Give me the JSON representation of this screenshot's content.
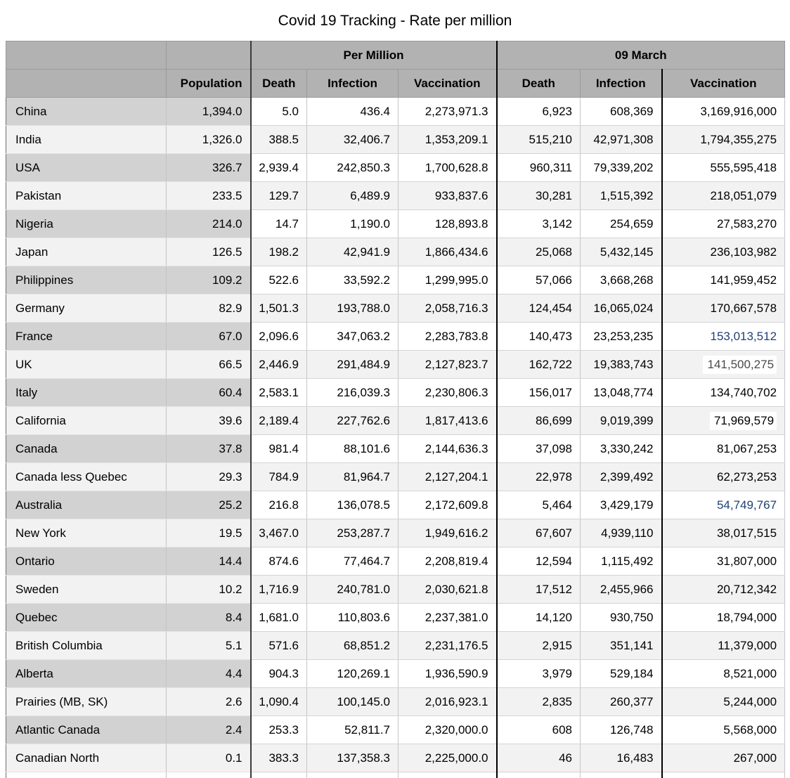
{
  "title": "Covid 19 Tracking - Rate per million",
  "colors": {
    "header_bg": "#b2b2b2",
    "label_column_bg": "#d2d2d2",
    "row_stripe_bg": "#f2f2f2",
    "accent_blue_text": "#1f4175",
    "highlight_cell_bg": "#ffffff",
    "muted_text": "#4a4a4a"
  },
  "table": {
    "group_headers": [
      "Per Million",
      "09 March"
    ],
    "column_headers": [
      "Population",
      "Death",
      "Infection",
      "Vaccination",
      "Death",
      "Infection",
      "Vaccination"
    ],
    "rows": [
      {
        "name": "China",
        "population": "1,394.0",
        "pm_death": "5.0",
        "pm_infection": "436.4",
        "pm_vaccination": "2,273,971.3",
        "m9_death": "6,923",
        "m9_infection": "608,369",
        "m9_vaccination": "3,169,916,000"
      },
      {
        "name": "India",
        "population": "1,326.0",
        "pm_death": "388.5",
        "pm_infection": "32,406.7",
        "pm_vaccination": "1,353,209.1",
        "m9_death": "515,210",
        "m9_infection": "42,971,308",
        "m9_vaccination": "1,794,355,275"
      },
      {
        "name": "USA",
        "population": "326.7",
        "pm_death": "2,939.4",
        "pm_infection": "242,850.3",
        "pm_vaccination": "1,700,628.8",
        "m9_death": "960,311",
        "m9_infection": "79,339,202",
        "m9_vaccination": "555,595,418"
      },
      {
        "name": "Pakistan",
        "population": "233.5",
        "pm_death": "129.7",
        "pm_infection": "6,489.9",
        "pm_vaccination": "933,837.6",
        "m9_death": "30,281",
        "m9_infection": "1,515,392",
        "m9_vaccination": "218,051,079"
      },
      {
        "name": "Nigeria",
        "population": "214.0",
        "pm_death": "14.7",
        "pm_infection": "1,190.0",
        "pm_vaccination": "128,893.8",
        "m9_death": "3,142",
        "m9_infection": "254,659",
        "m9_vaccination": "27,583,270"
      },
      {
        "name": "Japan",
        "population": "126.5",
        "pm_death": "198.2",
        "pm_infection": "42,941.9",
        "pm_vaccination": "1,866,434.6",
        "m9_death": "25,068",
        "m9_infection": "5,432,145",
        "m9_vaccination": "236,103,982"
      },
      {
        "name": "Philippines",
        "population": "109.2",
        "pm_death": "522.6",
        "pm_infection": "33,592.2",
        "pm_vaccination": "1,299,995.0",
        "m9_death": "57,066",
        "m9_infection": "3,668,268",
        "m9_vaccination": "141,959,452"
      },
      {
        "name": "Germany",
        "population": "82.9",
        "pm_death": "1,501.3",
        "pm_infection": "193,788.0",
        "pm_vaccination": "2,058,716.3",
        "m9_death": "124,454",
        "m9_infection": "16,065,024",
        "m9_vaccination": "170,667,578"
      },
      {
        "name": "France",
        "population": "67.0",
        "pm_death": "2,096.6",
        "pm_infection": "347,063.2",
        "pm_vaccination": "2,283,783.8",
        "m9_death": "140,473",
        "m9_infection": "23,253,235",
        "m9_vaccination": "153,013,512",
        "styles": {
          "m9_vaccination": "blue"
        }
      },
      {
        "name": "UK",
        "population": "66.5",
        "pm_death": "2,446.9",
        "pm_infection": "291,484.9",
        "pm_vaccination": "2,127,823.7",
        "m9_death": "162,722",
        "m9_infection": "19,383,743",
        "m9_vaccination": "141,500,275",
        "styles": {
          "m9_vaccination": "patch muted"
        }
      },
      {
        "name": "Italy",
        "population": "60.4",
        "pm_death": "2,583.1",
        "pm_infection": "216,039.3",
        "pm_vaccination": "2,230,806.3",
        "m9_death": "156,017",
        "m9_infection": "13,048,774",
        "m9_vaccination": "134,740,702"
      },
      {
        "name": "California",
        "population": "39.6",
        "pm_death": "2,189.4",
        "pm_infection": "227,762.6",
        "pm_vaccination": "1,817,413.6",
        "m9_death": "86,699",
        "m9_infection": "9,019,399",
        "m9_vaccination": "71,969,579",
        "styles": {
          "m9_vaccination": "patch"
        }
      },
      {
        "name": "Canada",
        "population": "37.8",
        "pm_death": "981.4",
        "pm_infection": "88,101.6",
        "pm_vaccination": "2,144,636.3",
        "m9_death": "37,098",
        "m9_infection": "3,330,242",
        "m9_vaccination": "81,067,253"
      },
      {
        "name": "Canada less Quebec",
        "population": "29.3",
        "pm_death": "784.9",
        "pm_infection": "81,964.7",
        "pm_vaccination": "2,127,204.1",
        "m9_death": "22,978",
        "m9_infection": "2,399,492",
        "m9_vaccination": "62,273,253"
      },
      {
        "name": "Australia",
        "population": "25.2",
        "pm_death": "216.8",
        "pm_infection": "136,078.5",
        "pm_vaccination": "2,172,609.8",
        "m9_death": "5,464",
        "m9_infection": "3,429,179",
        "m9_vaccination": "54,749,767",
        "styles": {
          "m9_vaccination": "blue"
        }
      },
      {
        "name": "New York",
        "population": "19.5",
        "pm_death": "3,467.0",
        "pm_infection": "253,287.7",
        "pm_vaccination": "1,949,616.2",
        "m9_death": "67,607",
        "m9_infection": "4,939,110",
        "m9_vaccination": "38,017,515"
      },
      {
        "name": "Ontario",
        "population": "14.4",
        "pm_death": "874.6",
        "pm_infection": "77,464.7",
        "pm_vaccination": "2,208,819.4",
        "m9_death": "12,594",
        "m9_infection": "1,115,492",
        "m9_vaccination": "31,807,000"
      },
      {
        "name": "Sweden",
        "population": "10.2",
        "pm_death": "1,716.9",
        "pm_infection": "240,781.0",
        "pm_vaccination": "2,030,621.8",
        "m9_death": "17,512",
        "m9_infection": "2,455,966",
        "m9_vaccination": "20,712,342"
      },
      {
        "name": "Quebec",
        "population": "8.4",
        "pm_death": "1,681.0",
        "pm_infection": "110,803.6",
        "pm_vaccination": "2,237,381.0",
        "m9_death": "14,120",
        "m9_infection": "930,750",
        "m9_vaccination": "18,794,000"
      },
      {
        "name": "British Columbia",
        "population": "5.1",
        "pm_death": "571.6",
        "pm_infection": "68,851.2",
        "pm_vaccination": "2,231,176.5",
        "m9_death": "2,915",
        "m9_infection": "351,141",
        "m9_vaccination": "11,379,000"
      },
      {
        "name": "Alberta",
        "population": "4.4",
        "pm_death": "904.3",
        "pm_infection": "120,269.1",
        "pm_vaccination": "1,936,590.9",
        "m9_death": "3,979",
        "m9_infection": "529,184",
        "m9_vaccination": "8,521,000"
      },
      {
        "name": "Prairies (MB, SK)",
        "population": "2.6",
        "pm_death": "1,090.4",
        "pm_infection": "100,145.0",
        "pm_vaccination": "2,016,923.1",
        "m9_death": "2,835",
        "m9_infection": "260,377",
        "m9_vaccination": "5,244,000"
      },
      {
        "name": "Atlantic Canada",
        "population": "2.4",
        "pm_death": "253.3",
        "pm_infection": "52,811.7",
        "pm_vaccination": "2,320,000.0",
        "m9_death": "608",
        "m9_infection": "126,748",
        "m9_vaccination": "5,568,000"
      },
      {
        "name": "Canadian North",
        "population": "0.1",
        "pm_death": "383.3",
        "pm_infection": "137,358.3",
        "pm_vaccination": "2,225,000.0",
        "m9_death": "46",
        "m9_infection": "16,483",
        "m9_vaccination": "267,000"
      }
    ]
  }
}
